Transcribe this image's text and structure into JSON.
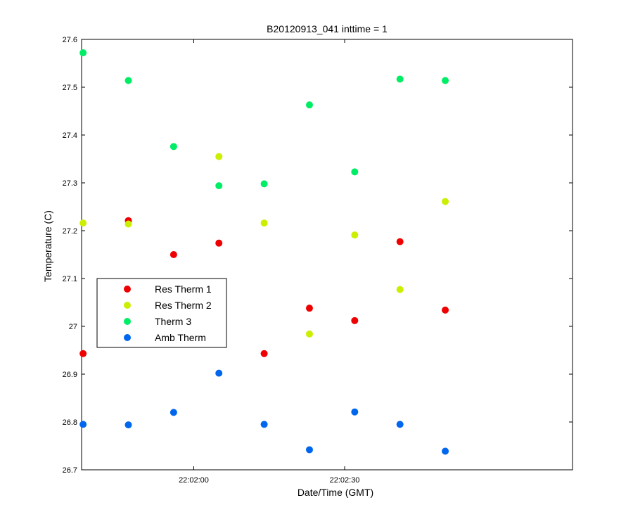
{
  "chart_data": {
    "type": "scatter",
    "title": "B20120913_041 inttime = 1",
    "xlabel": "Date/Time (GMT)",
    "ylabel": "Temperature (C)",
    "x_unit": "time (HH:MM:SS GMT)",
    "xlim": [
      "22:01:37.7",
      "22:03:15.3"
    ],
    "ylim": [
      26.7,
      27.6
    ],
    "x_ticks": [
      "22:02:00",
      "22:02:30"
    ],
    "y_ticks": [
      "26.7",
      "26.8",
      "26.9",
      "27",
      "27.1",
      "27.2",
      "27.3",
      "27.4",
      "27.5",
      "27.6"
    ],
    "grid": false,
    "legend_position": "left-middle",
    "x": [
      "22:01:38",
      "22:01:47",
      "22:01:56",
      "22:02:05",
      "22:02:14",
      "22:02:23",
      "22:02:32",
      "22:02:41",
      "22:02:50"
    ],
    "series": [
      {
        "name": "Res Therm 1",
        "color": "#ee0000",
        "values": [
          26.943,
          27.221,
          27.15,
          27.174,
          26.943,
          27.038,
          27.012,
          27.177,
          27.034
        ]
      },
      {
        "name": "Res Therm 2",
        "color": "#ccee00",
        "values": [
          27.216,
          27.214,
          null,
          27.355,
          27.216,
          26.984,
          27.191,
          27.077,
          27.261
        ]
      },
      {
        "name": "Therm 3",
        "color": "#00ee66",
        "values": [
          27.572,
          27.514,
          27.376,
          27.294,
          27.298,
          27.463,
          27.323,
          27.517,
          27.514
        ]
      },
      {
        "name": "Amb Therm",
        "color": "#0066ee",
        "values": [
          26.795,
          26.794,
          26.82,
          26.902,
          26.795,
          26.742,
          26.821,
          26.795,
          26.739
        ]
      }
    ]
  }
}
